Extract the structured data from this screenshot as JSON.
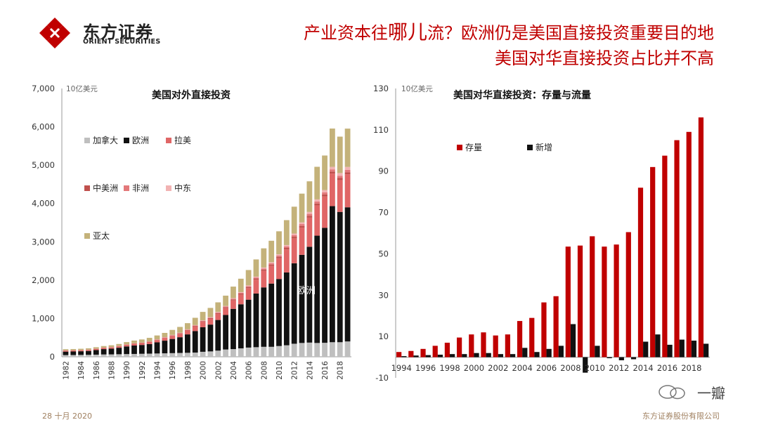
{
  "header": {
    "brand_cn": "东方证券",
    "brand_en": "ORIENT SECURITIES",
    "title_line1_a": "产业资本往",
    "title_line1_b": "哪儿",
    "title_line1_c": "流？欧洲仍是美国直接投资重要目的地",
    "title_line2": "美国对华直接投资占比并不高"
  },
  "footer": {
    "date": "28 十月 2020",
    "company": "东方证券股份有限公司",
    "watermark": "一瓣"
  },
  "colors": {
    "red": "#c00000",
    "black": "#111111",
    "canada": "#bfbfbf",
    "latam": "#e06666",
    "central_am": "#c0504d",
    "africa": "#e3787a",
    "middle_east": "#f2b3b3",
    "asia_pac": "#c4b27a"
  },
  "chart_data": [
    {
      "type": "bar",
      "stacked": true,
      "title": "美国对外直接投资",
      "unit": "10亿美元",
      "inner_label": "欧洲",
      "ylim": [
        0,
        7000
      ],
      "yticks": [
        "0",
        "1,000",
        "2,000",
        "3,000",
        "4,000",
        "5,000",
        "6,000",
        "7,000"
      ],
      "x": [
        1982,
        1983,
        1984,
        1985,
        1986,
        1987,
        1988,
        1989,
        1990,
        1991,
        1992,
        1993,
        1994,
        1995,
        1996,
        1997,
        1998,
        1999,
        2000,
        2001,
        2002,
        2003,
        2004,
        2005,
        2006,
        2007,
        2008,
        2009,
        2010,
        2011,
        2012,
        2013,
        2014,
        2015,
        2016,
        2017,
        2018,
        2019
      ],
      "xticks": [
        "1982",
        "1984",
        "1986",
        "1988",
        "1990",
        "1992",
        "1994",
        "1996",
        "1998",
        "2000",
        "2002",
        "2004",
        "2006",
        "2008",
        "2010",
        "2012",
        "2014",
        "2016",
        "2018"
      ],
      "series": [
        {
          "name": "加拿大",
          "color": "#bfbfbf",
          "values": [
            44,
            46,
            48,
            50,
            55,
            60,
            62,
            66,
            70,
            74,
            78,
            82,
            86,
            90,
            95,
            100,
            104,
            110,
            130,
            140,
            160,
            190,
            200,
            220,
            240,
            250,
            260,
            260,
            280,
            300,
            340,
            360,
            370,
            360,
            365,
            380,
            380,
            400
          ]
        },
        {
          "name": "欧洲",
          "color": "#111111",
          "values": [
            90,
            92,
            96,
            102,
            120,
            140,
            150,
            170,
            200,
            220,
            230,
            250,
            290,
            330,
            370,
            410,
            480,
            560,
            640,
            700,
            800,
            900,
            1050,
            1150,
            1250,
            1400,
            1550,
            1650,
            1750,
            1900,
            2100,
            2300,
            2500,
            2800,
            3000,
            3550,
            3400,
            3500
          ]
        },
        {
          "name": "拉美",
          "color": "#e06666",
          "values": [
            25,
            25,
            24,
            26,
            28,
            30,
            32,
            36,
            40,
            45,
            50,
            55,
            60,
            70,
            80,
            90,
            100,
            120,
            140,
            150,
            160,
            180,
            220,
            250,
            300,
            360,
            430,
            460,
            540,
            600,
            650,
            710,
            760,
            790,
            820,
            850,
            830,
            860
          ]
        },
        {
          "name": "中美洲",
          "color": "#c0504d",
          "values": [
            4,
            4,
            4,
            4,
            5,
            5,
            5,
            6,
            6,
            7,
            7,
            8,
            9,
            10,
            11,
            12,
            14,
            16,
            18,
            20,
            22,
            24,
            26,
            28,
            30,
            32,
            34,
            36,
            38,
            40,
            42,
            44,
            46,
            48,
            50,
            52,
            54,
            56
          ]
        },
        {
          "name": "非洲",
          "color": "#e3787a",
          "values": [
            3,
            3,
            3,
            3,
            3,
            3,
            3,
            3,
            4,
            4,
            4,
            5,
            6,
            7,
            8,
            9,
            10,
            11,
            12,
            13,
            15,
            17,
            19,
            21,
            23,
            26,
            30,
            33,
            36,
            40,
            44,
            48,
            52,
            54,
            56,
            58,
            60,
            62
          ]
        },
        {
          "name": "中东",
          "color": "#f2b3b3",
          "values": [
            2,
            2,
            2,
            2,
            2,
            2,
            3,
            3,
            3,
            3,
            3,
            4,
            5,
            6,
            7,
            8,
            9,
            10,
            11,
            12,
            13,
            14,
            16,
            18,
            20,
            22,
            25,
            28,
            30,
            35,
            40,
            45,
            50,
            55,
            60,
            65,
            70,
            75
          ]
        },
        {
          "name": "亚太",
          "color": "#c4b27a",
          "values": [
            30,
            30,
            32,
            34,
            36,
            40,
            45,
            50,
            60,
            70,
            80,
            90,
            100,
            110,
            130,
            150,
            160,
            190,
            220,
            240,
            250,
            270,
            300,
            350,
            400,
            450,
            500,
            560,
            600,
            650,
            700,
            750,
            800,
            850,
            900,
            1000,
            950,
            1000
          ]
        }
      ]
    },
    {
      "type": "bar",
      "title": "美国对华直接投资：存量与流量",
      "unit": "10亿美元",
      "ylim": [
        -10,
        130
      ],
      "yticks": [
        "-10",
        "10",
        "30",
        "50",
        "70",
        "90",
        "110",
        "130"
      ],
      "x": [
        1994,
        1995,
        1996,
        1997,
        1998,
        1999,
        2000,
        2001,
        2002,
        2003,
        2004,
        2005,
        2006,
        2007,
        2008,
        2009,
        2010,
        2011,
        2012,
        2013,
        2014,
        2015,
        2016,
        2017,
        2018,
        2019
      ],
      "xticks": [
        "1994",
        "1996",
        "1998",
        "2000",
        "2002",
        "2004",
        "2006",
        "2008",
        "2010",
        "2012",
        "2014",
        "2016",
        "2018"
      ],
      "series": [
        {
          "name": "存量",
          "color": "#c00000",
          "values": [
            2.5,
            3,
            4,
            5.5,
            7,
            9.5,
            11,
            12,
            10.5,
            11,
            17.5,
            19,
            26.5,
            29.5,
            53.5,
            54,
            58.5,
            53.5,
            54.5,
            60.5,
            82,
            92,
            97.5,
            105,
            109,
            116
          ]
        },
        {
          "name": "新增",
          "color": "#111111",
          "values": [
            0.5,
            0.8,
            1,
            1.2,
            1.5,
            1.5,
            2,
            2,
            1.5,
            1.5,
            4.5,
            2.5,
            4,
            5.5,
            16,
            -7.5,
            5.5,
            -0.5,
            -1.5,
            -1,
            7.5,
            11,
            6,
            8.5,
            8,
            6.5
          ]
        }
      ]
    }
  ]
}
